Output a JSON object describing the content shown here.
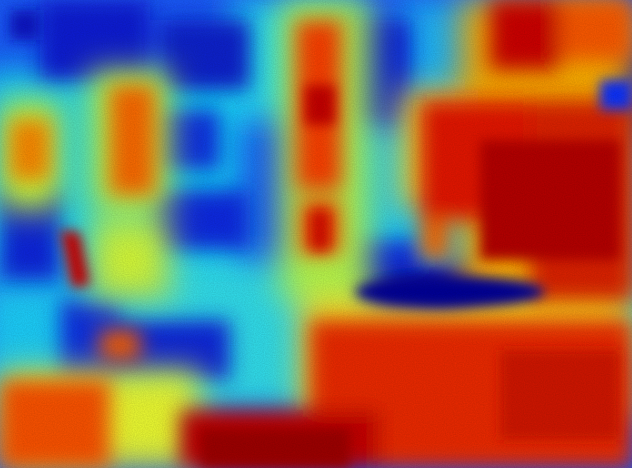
{
  "image": {
    "kind": "false-color heatmap",
    "colormap": "jet",
    "palette": {
      "low": "#00008f",
      "low_mid": "#0050ff",
      "mid": "#00d8ff",
      "mid_high": "#c8ff3c",
      "high": "#ffd200",
      "very_high": "#ff3c00",
      "max": "#a00000"
    }
  }
}
